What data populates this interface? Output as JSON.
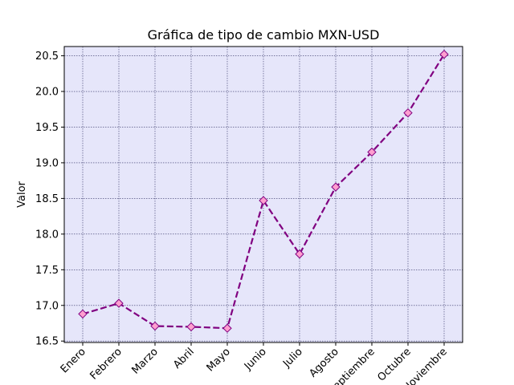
{
  "chart_data": {
    "type": "line",
    "title": "Gráfica de tipo de cambio MXN-USD",
    "xlabel": "",
    "ylabel": "Valor",
    "categories": [
      "Enero",
      "Febrero",
      "Marzo",
      "Abril",
      "Mayo",
      "Junio",
      "Julio",
      "Agosto",
      "Septiembre",
      "Octubre",
      "Noviembre"
    ],
    "series": [
      {
        "values": [
          16.88,
          17.03,
          16.71,
          16.7,
          16.68,
          18.47,
          17.72,
          18.66,
          19.15,
          19.7,
          20.52
        ]
      }
    ],
    "ylim": [
      16.48,
      20.63
    ],
    "yticks": [
      16.5,
      17.0,
      17.5,
      18.0,
      18.5,
      19.0,
      19.5,
      20.0,
      20.5
    ],
    "ytick_labels": [
      "16.5",
      "17.0",
      "17.5",
      "18.0",
      "18.5",
      "19.0",
      "19.5",
      "20.0",
      "20.5"
    ],
    "grid": true,
    "colors": {
      "background": "#e6e6fa",
      "line": "#800080",
      "marker_fill": "#ff9ecf",
      "marker_edge": "#800080",
      "grid": "#333366"
    },
    "line_style": "dashed",
    "marker": "diamond"
  }
}
